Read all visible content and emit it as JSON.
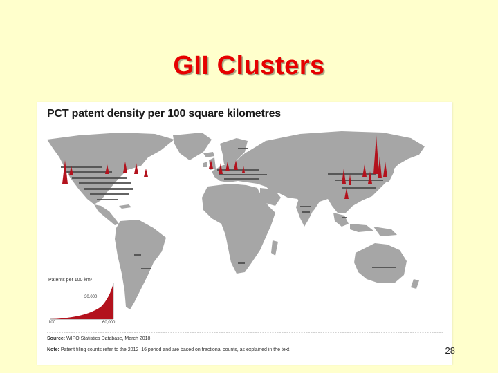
{
  "slide": {
    "title": "GII Clusters",
    "page_number": "28"
  },
  "figure": {
    "title": "PCT patent density per 100 square kilometres",
    "legend": {
      "title": "Patents per 100 km²",
      "max_label": "30,000",
      "min_label": "100",
      "end_label": "60,000"
    },
    "source_label": "Source:",
    "source_text": " WIPO Statistics Database, March 2018.",
    "note_label": "Note:",
    "note_text": " Patent filing counts refer to the 2012–16 period and are based on fractional counts, as explained in the text.",
    "colors": {
      "land": "#a6a6a6",
      "hotspot": "#b3121d",
      "ocean": "#ffffff"
    }
  }
}
